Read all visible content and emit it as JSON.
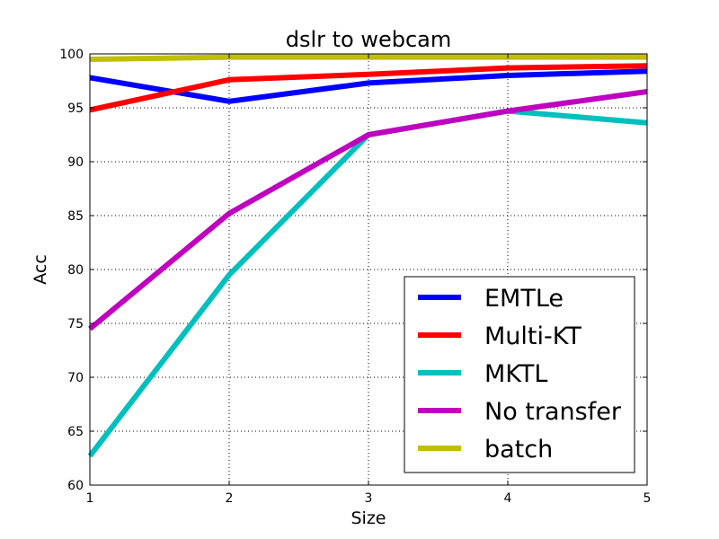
{
  "chart_data": {
    "type": "line",
    "title": "dslr to webcam",
    "xlabel": "Size",
    "ylabel": "Acc",
    "x": [
      1,
      2,
      3,
      4,
      5
    ],
    "xlim": [
      1,
      5
    ],
    "ylim": [
      60,
      100
    ],
    "xticks": [
      "1",
      "2",
      "3",
      "4",
      "5"
    ],
    "yticks": [
      "60",
      "65",
      "70",
      "75",
      "80",
      "85",
      "90",
      "95",
      "100"
    ],
    "grid": true,
    "legend_position": "lower-right",
    "series": [
      {
        "name": "EMTLe",
        "color": "#0000ff",
        "values": [
          97.8,
          95.6,
          97.3,
          98.0,
          98.4
        ]
      },
      {
        "name": "Multi-KT",
        "color": "#ff0000",
        "values": [
          94.8,
          97.6,
          98.1,
          98.7,
          98.9
        ]
      },
      {
        "name": "MKTL",
        "color": "#00bfbf",
        "values": [
          62.7,
          79.5,
          92.5,
          94.7,
          93.6
        ]
      },
      {
        "name": "No transfer",
        "color": "#bf00bf",
        "values": [
          74.5,
          85.2,
          92.5,
          94.7,
          96.5
        ]
      },
      {
        "name": "batch",
        "color": "#bfbf00",
        "values": [
          99.5,
          99.7,
          99.7,
          99.7,
          99.7
        ]
      }
    ]
  }
}
